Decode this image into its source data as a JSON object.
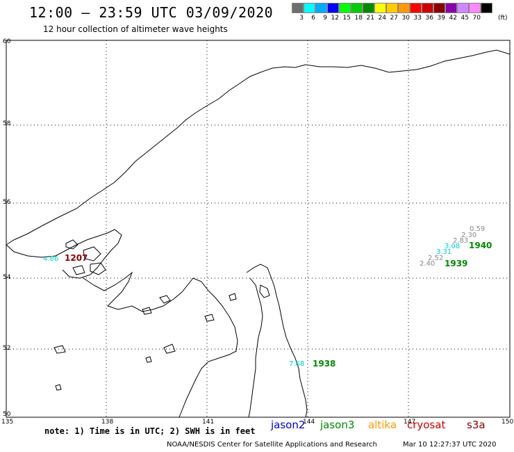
{
  "header": {
    "title": "12:00 – 23:59 UTC 03/09/2020",
    "subtitle": "12 hour collection of altimeter wave heights"
  },
  "color_scale": {
    "colors": [
      "#6e6e6e",
      "#00ffff",
      "#00aaff",
      "#0000ff",
      "#00ff00",
      "#00cc00",
      "#008800",
      "#ffff00",
      "#ffcc00",
      "#ff9900",
      "#ff0000",
      "#cc0000",
      "#880000",
      "#8800aa",
      "#cc88ff",
      "#ff88ff",
      "#000000"
    ],
    "labels": [
      "3",
      "6",
      "9",
      "12",
      "15",
      "18",
      "21",
      "24",
      "27",
      "30",
      "33",
      "36",
      "39",
      "42",
      "45",
      "70"
    ],
    "unit": "(ft)"
  },
  "axes": {
    "lat_labels": [
      "60",
      "58",
      "56",
      "54",
      "52",
      "50"
    ],
    "lon_labels": [
      "135",
      "138",
      "141",
      "144",
      "147",
      "150"
    ]
  },
  "observations": [
    {
      "value": "0.59",
      "color": "#888888"
    },
    {
      "value": "2.30",
      "color": "#888888"
    },
    {
      "value": "2.83",
      "color": "#888888"
    },
    {
      "value": "3.08",
      "color": "#00cccc"
    },
    {
      "value": "3.31",
      "color": "#00cccc"
    },
    {
      "value": "2.52",
      "color": "#888888"
    },
    {
      "value": "2.40",
      "color": "#888888"
    },
    {
      "value": "4.86",
      "color": "#00cccc"
    },
    {
      "value": "7.68",
      "color": "#00cccc"
    }
  ],
  "times": [
    {
      "value": "1940",
      "color": "#008800"
    },
    {
      "value": "1939",
      "color": "#008800"
    },
    {
      "value": "1938",
      "color": "#008800"
    },
    {
      "value": "1207",
      "color": "#880000"
    }
  ],
  "footer": {
    "note": "note:  1) Time is in UTC;  2) SWH is in feet",
    "legend": [
      {
        "label": "jason2",
        "color": "#0000cc"
      },
      {
        "label": "jason3",
        "color": "#008800"
      },
      {
        "label": "altika",
        "color": "#ff9900"
      },
      {
        "label": "cryosat",
        "color": "#cc0000"
      },
      {
        "label": "s3a",
        "color": "#880000"
      }
    ],
    "credit": "NOAA/NESDIS Center for Satellite Applications and Research",
    "timestamp": "Mar 10 12:27:37 UTC 2020"
  }
}
